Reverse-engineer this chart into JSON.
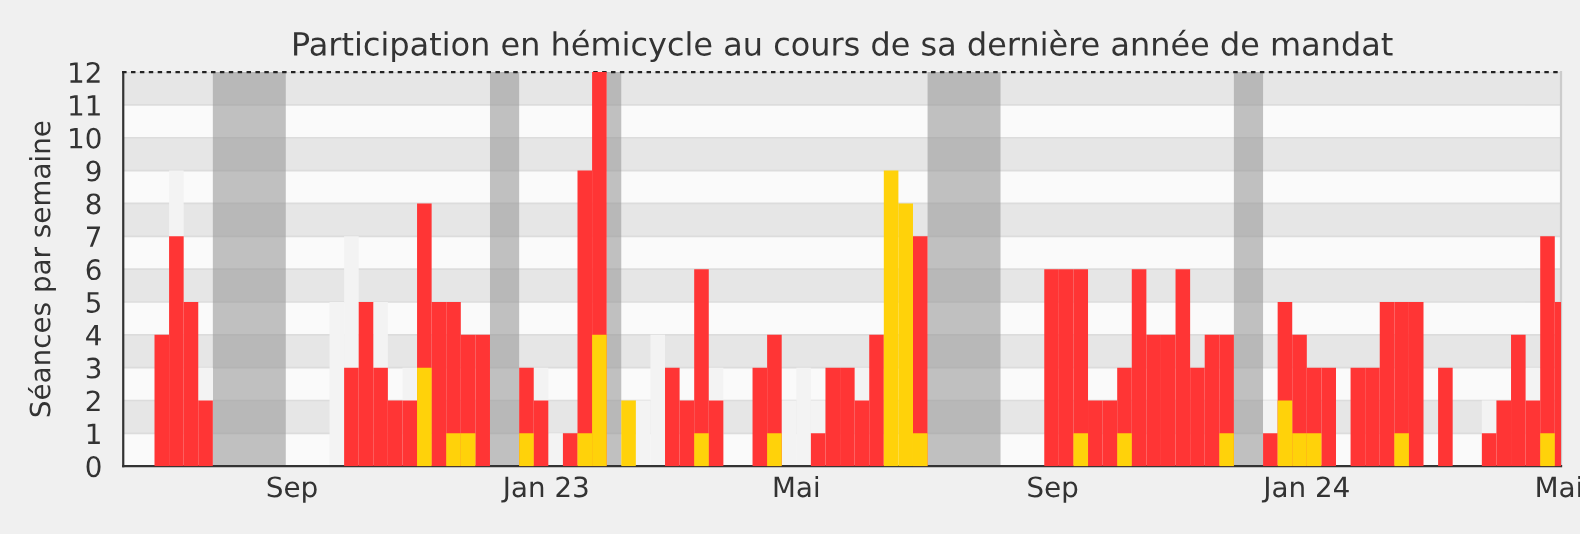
{
  "chart_data": {
    "type": "bar",
    "title": "Participation en hémicycle au cours de sa dernière année de mandat",
    "ylabel": "Séances par semaine",
    "series": [
      {
        "color": "#f3f3f3",
        "x": [
          "2022-07-18",
          "2022-08-01",
          "2022-10-03",
          "2022-10-10",
          "2022-10-24",
          "2022-11-07",
          "2023-01-09",
          "2023-01-16",
          "2023-02-27",
          "2023-03-06",
          "2023-04-03",
          "2023-05-08",
          "2023-05-15",
          "2023-05-22",
          "2023-06-12",
          "2023-12-25",
          "2024-04-08",
          "2024-04-29"
        ],
        "values": [
          9,
          3,
          5,
          7,
          5,
          3,
          3,
          1,
          2,
          4,
          3,
          2,
          3,
          2,
          3,
          2,
          2,
          3
        ]
      },
      {
        "color": "#ff3535",
        "x": [
          "2022-07-11",
          "2022-07-18",
          "2022-07-25",
          "2022-08-01",
          "2022-10-10",
          "2022-10-17",
          "2022-10-24",
          "2022-10-31",
          "2022-11-07",
          "2022-11-14",
          "2022-11-21",
          "2022-11-28",
          "2022-12-05",
          "2022-12-12",
          "2023-01-02",
          "2023-01-09",
          "2023-01-23",
          "2023-01-30",
          "2023-02-06",
          "2023-03-13",
          "2023-03-20",
          "2023-03-27",
          "2023-04-03",
          "2023-04-24",
          "2023-05-01",
          "2023-05-22",
          "2023-05-29",
          "2023-06-05",
          "2023-06-12",
          "2023-06-19",
          "2023-07-10",
          "2023-09-11",
          "2023-09-18",
          "2023-09-25",
          "2023-10-02",
          "2023-10-09",
          "2023-10-16",
          "2023-10-23",
          "2023-10-30",
          "2023-11-06",
          "2023-11-13",
          "2023-11-20",
          "2023-11-27",
          "2023-12-04",
          "2023-12-25",
          "2024-01-01",
          "2024-01-08",
          "2024-01-15",
          "2024-01-22",
          "2024-02-05",
          "2024-02-12",
          "2024-02-19",
          "2024-02-26",
          "2024-03-04",
          "2024-03-18",
          "2024-04-08",
          "2024-04-15",
          "2024-04-22",
          "2024-04-29",
          "2024-05-06",
          "2024-05-13"
        ],
        "values": [
          4,
          7,
          5,
          2,
          3,
          5,
          3,
          2,
          2,
          8,
          5,
          5,
          4,
          4,
          3,
          2,
          1,
          9,
          12,
          3,
          2,
          6,
          2,
          3,
          4,
          1,
          3,
          3,
          2,
          4,
          7,
          6,
          6,
          6,
          2,
          2,
          3,
          6,
          4,
          4,
          6,
          3,
          4,
          4,
          1,
          5,
          4,
          3,
          3,
          3,
          3,
          5,
          5,
          5,
          3,
          1,
          2,
          4,
          2,
          7,
          5
        ]
      },
      {
        "color": "#ffd20a",
        "x": [
          "2022-11-14",
          "2022-11-28",
          "2022-12-05",
          "2023-01-02",
          "2023-01-30",
          "2023-02-06",
          "2023-02-20",
          "2023-03-27",
          "2023-05-01",
          "2023-06-26",
          "2023-07-03",
          "2023-07-10",
          "2023-09-25",
          "2023-10-16",
          "2023-12-04",
          "2024-01-01",
          "2024-01-08",
          "2024-01-15",
          "2024-02-26",
          "2024-05-06"
        ],
        "values": [
          3,
          1,
          1,
          1,
          1,
          4,
          2,
          1,
          1,
          9,
          8,
          1,
          1,
          1,
          1,
          2,
          1,
          1,
          1,
          1
        ]
      }
    ],
    "bands": [
      {
        "axis": "x",
        "from": "2022-08-08",
        "to": "2022-09-12",
        "color": "#9a9a9a"
      },
      {
        "axis": "x",
        "from": "2022-12-19",
        "to": "2023-01-02",
        "color": "#9a9a9a"
      },
      {
        "axis": "x",
        "from": "2023-02-13",
        "to": "2023-02-20",
        "color": "#9a9a9a"
      },
      {
        "axis": "x",
        "from": "2023-07-17",
        "to": "2023-08-21",
        "color": "#9a9a9a"
      },
      {
        "axis": "x",
        "from": "2023-12-11",
        "to": "2023-12-25",
        "color": "#9a9a9a"
      }
    ],
    "xlim": [
      "2022-06-26",
      "2024-05-16"
    ],
    "xticks": [
      {
        "value": "2022-09-15",
        "label": "Sep"
      },
      {
        "value": "2023-01-15",
        "label": "Jan 23"
      },
      {
        "value": "2023-05-15",
        "label": "Mai"
      },
      {
        "value": "2023-09-15",
        "label": "Sep"
      },
      {
        "value": "2024-01-15",
        "label": "Jan 24"
      },
      {
        "value": "2024-05-15",
        "label": "Mai"
      }
    ],
    "ylim": [
      0,
      12
    ],
    "yticks": [
      0,
      1,
      2,
      3,
      4,
      5,
      6,
      7,
      8,
      9,
      10,
      11,
      12
    ],
    "grid": "y",
    "legend": false
  }
}
